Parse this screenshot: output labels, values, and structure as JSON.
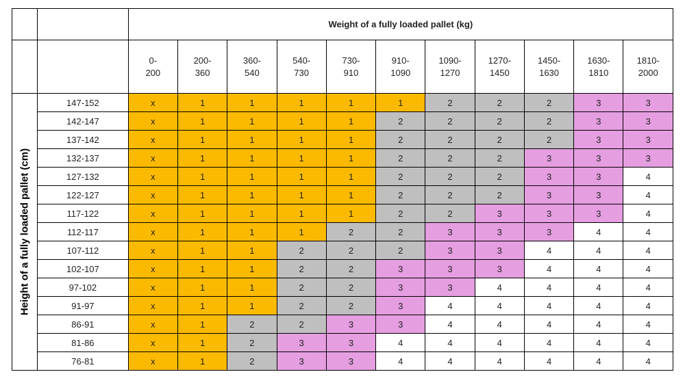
{
  "table": {
    "title": "Weight of a fully loaded pallet (kg)",
    "row_axis_label": "Height of a fully loaded pallet (cm)",
    "columns": [
      "0-\n200",
      "200-\n360",
      "360-\n540",
      "540-\n730",
      "730-\n910",
      "910-\n1090",
      "1090-\n1270",
      "1270-\n1450",
      "1450-\n1630",
      "1630-\n1810",
      "1810-\n2000"
    ],
    "rows": [
      {
        "label": "147-152",
        "cells": [
          "x",
          "1",
          "1",
          "1",
          "1",
          "1",
          "2",
          "2",
          "2",
          "3",
          "3"
        ]
      },
      {
        "label": "142-147",
        "cells": [
          "x",
          "1",
          "1",
          "1",
          "1",
          "2",
          "2",
          "2",
          "2",
          "3",
          "3"
        ]
      },
      {
        "label": "137-142",
        "cells": [
          "x",
          "1",
          "1",
          "1",
          "1",
          "2",
          "2",
          "2",
          "2",
          "3",
          "3"
        ]
      },
      {
        "label": "132-137",
        "cells": [
          "x",
          "1",
          "1",
          "1",
          "1",
          "2",
          "2",
          "2",
          "3",
          "3",
          "3"
        ]
      },
      {
        "label": "127-132",
        "cells": [
          "x",
          "1",
          "1",
          "1",
          "1",
          "2",
          "2",
          "2",
          "3",
          "3",
          "4"
        ]
      },
      {
        "label": "122-127",
        "cells": [
          "x",
          "1",
          "1",
          "1",
          "1",
          "2",
          "2",
          "2",
          "3",
          "3",
          "4"
        ]
      },
      {
        "label": "117-122",
        "cells": [
          "x",
          "1",
          "1",
          "1",
          "1",
          "2",
          "2",
          "3",
          "3",
          "3",
          "4"
        ]
      },
      {
        "label": "112-117",
        "cells": [
          "x",
          "1",
          "1",
          "1",
          "2",
          "2",
          "3",
          "3",
          "3",
          "4",
          "4"
        ]
      },
      {
        "label": "107-112",
        "cells": [
          "x",
          "1",
          "1",
          "2",
          "2",
          "2",
          "3",
          "3",
          "4",
          "4",
          "4"
        ]
      },
      {
        "label": "102-107",
        "cells": [
          "x",
          "1",
          "1",
          "2",
          "2",
          "3",
          "3",
          "3",
          "4",
          "4",
          "4"
        ]
      },
      {
        "label": "97-102",
        "cells": [
          "x",
          "1",
          "1",
          "2",
          "2",
          "3",
          "3",
          "4",
          "4",
          "4",
          "4"
        ]
      },
      {
        "label": "91-97",
        "cells": [
          "x",
          "1",
          "1",
          "2",
          "2",
          "3",
          "4",
          "4",
          "4",
          "4",
          "4"
        ]
      },
      {
        "label": "86-91",
        "cells": [
          "x",
          "1",
          "2",
          "2",
          "3",
          "3",
          "4",
          "4",
          "4",
          "4",
          "4"
        ]
      },
      {
        "label": "81-86",
        "cells": [
          "x",
          "1",
          "2",
          "3",
          "3",
          "4",
          "4",
          "4",
          "4",
          "4",
          "4"
        ]
      },
      {
        "label": "76-81",
        "cells": [
          "x",
          "1",
          "2",
          "3",
          "3",
          "4",
          "4",
          "4",
          "4",
          "4",
          "4"
        ]
      }
    ]
  },
  "colors": {
    "x": "#fbba00",
    "1": "#fbba00",
    "2": "#bfbfbf",
    "3": "#e59ee0",
    "4": "#ffffff"
  }
}
